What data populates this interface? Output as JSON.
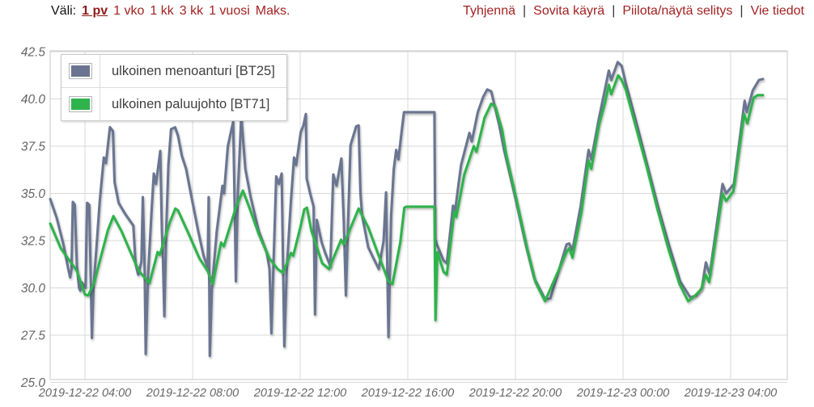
{
  "toolbar": {
    "range_label": "Väli:",
    "separator": "|",
    "range_options": [
      {
        "label": "1 pv",
        "active": true
      },
      {
        "label": "1 vko",
        "active": false
      },
      {
        "label": "1 kk",
        "active": false
      },
      {
        "label": "3 kk",
        "active": false
      },
      {
        "label": "1 vuosi",
        "active": false
      },
      {
        "label": "Maks.",
        "active": false
      }
    ],
    "actions": [
      {
        "label": "Tyhjennä"
      },
      {
        "label": "Sovita käyrä"
      },
      {
        "label": "Piilota/näytä selitys"
      },
      {
        "label": "Vie tiedot"
      }
    ]
  },
  "chart_data": {
    "type": "line",
    "title": "",
    "xlabel": "",
    "ylabel": "",
    "grid": true,
    "legend_position": "top-left",
    "colors": {
      "grid": "#d9d9d9",
      "plot_border": "#c8c8c8",
      "axis_text": "#666666"
    },
    "y_axis": {
      "ticks": [
        25.0,
        27.5,
        30.0,
        32.5,
        35.0,
        37.5,
        40.0,
        42.5
      ],
      "range": [
        25.0,
        42.5
      ]
    },
    "x_axis": {
      "tick_hours": [
        0,
        4,
        8,
        12,
        16,
        20,
        24
      ],
      "tick_labels": [
        "2019-12-22 04:00",
        "2019-12-22 08:00",
        "2019-12-22 12:00",
        "2019-12-22 16:00",
        "2019-12-22 20:00",
        "2019-12-23 00:00",
        "2019-12-23 04:00"
      ],
      "range_hours": [
        -1.3,
        26.1
      ]
    },
    "series": [
      {
        "id": "bt25",
        "name": "ulkoinen menoanturi [BT25]",
        "color": "#6a7490",
        "points": [
          [
            -1.29,
            34.7
          ],
          [
            -1.05,
            33.7
          ],
          [
            -0.8,
            32.3
          ],
          [
            -0.62,
            31.0
          ],
          [
            -0.55,
            30.55
          ],
          [
            -0.5,
            31.0
          ],
          [
            -0.45,
            34.55
          ],
          [
            -0.38,
            34.4
          ],
          [
            -0.3,
            31.2
          ],
          [
            -0.22,
            30.0
          ],
          [
            -0.17,
            29.85
          ],
          [
            -0.12,
            30.3
          ],
          [
            0.02,
            30.0
          ],
          [
            0.08,
            34.5
          ],
          [
            0.16,
            34.4
          ],
          [
            0.22,
            30.2
          ],
          [
            0.26,
            27.35
          ],
          [
            0.32,
            30.1
          ],
          [
            0.42,
            32.0
          ],
          [
            0.55,
            34.6
          ],
          [
            0.7,
            36.9
          ],
          [
            0.78,
            36.6
          ],
          [
            0.93,
            38.5
          ],
          [
            1.04,
            38.3
          ],
          [
            1.1,
            35.6
          ],
          [
            1.25,
            34.5
          ],
          [
            1.5,
            33.9
          ],
          [
            1.8,
            33.3
          ],
          [
            1.88,
            31.3
          ],
          [
            1.98,
            30.7
          ],
          [
            2.1,
            31.4
          ],
          [
            2.15,
            34.8
          ],
          [
            2.22,
            31.0
          ],
          [
            2.26,
            26.5
          ],
          [
            2.34,
            30.5
          ],
          [
            2.48,
            34.2
          ],
          [
            2.56,
            36.05
          ],
          [
            2.64,
            35.5
          ],
          [
            2.8,
            37.25
          ],
          [
            2.86,
            33.0
          ],
          [
            2.9,
            31.5
          ],
          [
            2.95,
            28.5
          ],
          [
            3.02,
            33.0
          ],
          [
            3.1,
            36.5
          ],
          [
            3.2,
            38.4
          ],
          [
            3.35,
            38.5
          ],
          [
            3.46,
            38.05
          ],
          [
            3.6,
            37.0
          ],
          [
            3.76,
            36.3
          ],
          [
            3.96,
            34.8
          ],
          [
            4.21,
            33.0
          ],
          [
            4.41,
            31.7
          ],
          [
            4.56,
            31.1
          ],
          [
            4.6,
            34.8
          ],
          [
            4.64,
            26.4
          ],
          [
            4.72,
            30.0
          ],
          [
            4.9,
            33.0
          ],
          [
            5.11,
            35.4
          ],
          [
            5.17,
            35.0
          ],
          [
            5.31,
            37.5
          ],
          [
            5.51,
            38.8
          ],
          [
            5.57,
            34.0
          ],
          [
            5.61,
            30.35
          ],
          [
            5.68,
            35.0
          ],
          [
            5.81,
            39.1
          ],
          [
            5.96,
            36.3
          ],
          [
            6.16,
            34.8
          ],
          [
            6.46,
            33.0
          ],
          [
            6.76,
            31.85
          ],
          [
            6.86,
            31.0
          ],
          [
            6.93,
            27.6
          ],
          [
            7.0,
            31.0
          ],
          [
            7.11,
            35.9
          ],
          [
            7.21,
            35.5
          ],
          [
            7.31,
            36.05
          ],
          [
            7.36,
            31.6
          ],
          [
            7.41,
            26.9
          ],
          [
            7.5,
            31.0
          ],
          [
            7.65,
            34.5
          ],
          [
            7.77,
            36.9
          ],
          [
            7.85,
            36.5
          ],
          [
            8.02,
            38.25
          ],
          [
            8.12,
            38.6
          ],
          [
            8.21,
            39.2
          ],
          [
            8.24,
            35.8
          ],
          [
            8.37,
            35.0
          ],
          [
            8.5,
            34.3
          ],
          [
            8.55,
            28.6
          ],
          [
            8.62,
            33.6
          ],
          [
            8.8,
            32.4
          ],
          [
            8.93,
            31.85
          ],
          [
            9.08,
            31.3
          ],
          [
            9.12,
            31.1
          ],
          [
            9.23,
            36.0
          ],
          [
            9.35,
            35.4
          ],
          [
            9.53,
            36.85
          ],
          [
            9.62,
            33.5
          ],
          [
            9.7,
            29.6
          ],
          [
            9.78,
            33.5
          ],
          [
            9.87,
            37.55
          ],
          [
            10.08,
            38.55
          ],
          [
            10.17,
            38.6
          ],
          [
            10.24,
            35.0
          ],
          [
            10.3,
            33.85
          ],
          [
            10.53,
            32.15
          ],
          [
            10.68,
            31.7
          ],
          [
            10.92,
            31.0
          ],
          [
            11.1,
            32.5
          ],
          [
            11.19,
            35.05
          ],
          [
            11.28,
            27.4
          ],
          [
            11.38,
            33.85
          ],
          [
            11.48,
            36.3
          ],
          [
            11.57,
            37.3
          ],
          [
            11.65,
            36.8
          ],
          [
            11.78,
            38.4
          ],
          [
            11.86,
            39.3
          ],
          [
            12.1,
            39.3
          ],
          [
            12.99,
            39.3
          ],
          [
            13.02,
            32.6
          ],
          [
            13.08,
            32.3
          ],
          [
            13.33,
            31.45
          ],
          [
            13.45,
            31.3
          ],
          [
            13.68,
            34.35
          ],
          [
            13.76,
            34.1
          ],
          [
            13.98,
            36.5
          ],
          [
            14.29,
            38.2
          ],
          [
            14.38,
            37.75
          ],
          [
            14.6,
            39.3
          ],
          [
            14.8,
            40.1
          ],
          [
            14.95,
            40.5
          ],
          [
            15.1,
            40.4
          ],
          [
            15.4,
            38.6
          ],
          [
            15.58,
            37.3
          ],
          [
            16.0,
            34.75
          ],
          [
            16.4,
            32.2
          ],
          [
            16.7,
            30.5
          ],
          [
            17.1,
            29.4
          ],
          [
            17.3,
            29.45
          ],
          [
            17.9,
            32.3
          ],
          [
            18.0,
            32.35
          ],
          [
            18.12,
            32.0
          ],
          [
            18.42,
            34.3
          ],
          [
            18.72,
            37.3
          ],
          [
            18.82,
            36.8
          ],
          [
            19.1,
            38.95
          ],
          [
            19.32,
            40.45
          ],
          [
            19.47,
            41.5
          ],
          [
            19.56,
            41.0
          ],
          [
            19.8,
            41.95
          ],
          [
            19.95,
            41.75
          ],
          [
            20.1,
            40.85
          ],
          [
            20.52,
            38.6
          ],
          [
            20.9,
            36.5
          ],
          [
            21.3,
            34.3
          ],
          [
            21.72,
            32.2
          ],
          [
            22.12,
            30.35
          ],
          [
            22.5,
            29.5
          ],
          [
            22.72,
            29.6
          ],
          [
            22.93,
            30.0
          ],
          [
            23.08,
            31.35
          ],
          [
            23.22,
            30.7
          ],
          [
            23.7,
            35.5
          ],
          [
            23.83,
            35.0
          ],
          [
            24.12,
            35.5
          ],
          [
            24.52,
            39.9
          ],
          [
            24.6,
            39.3
          ],
          [
            24.82,
            40.45
          ],
          [
            25.05,
            41.0
          ],
          [
            25.2,
            41.05
          ]
        ]
      },
      {
        "id": "bt71",
        "name": "ulkoinen paluujohto [BT71]",
        "color": "#2fb34c",
        "points": [
          [
            -1.29,
            33.4
          ],
          [
            -0.9,
            32.1
          ],
          [
            -0.6,
            31.5
          ],
          [
            -0.3,
            30.9
          ],
          [
            0.0,
            29.65
          ],
          [
            0.12,
            29.6
          ],
          [
            0.35,
            30.3
          ],
          [
            0.62,
            31.8
          ],
          [
            0.85,
            33.05
          ],
          [
            1.06,
            33.8
          ],
          [
            1.36,
            33.0
          ],
          [
            1.66,
            32.0
          ],
          [
            2.0,
            30.9
          ],
          [
            2.4,
            30.25
          ],
          [
            2.7,
            31.9
          ],
          [
            2.78,
            31.75
          ],
          [
            3.16,
            33.5
          ],
          [
            3.36,
            34.2
          ],
          [
            3.46,
            34.1
          ],
          [
            3.86,
            32.85
          ],
          [
            4.26,
            31.55
          ],
          [
            4.56,
            30.9
          ],
          [
            4.75,
            30.2
          ],
          [
            5.06,
            32.4
          ],
          [
            5.16,
            32.2
          ],
          [
            5.61,
            34.25
          ],
          [
            5.87,
            35.15
          ],
          [
            6.11,
            34.25
          ],
          [
            6.46,
            32.85
          ],
          [
            6.86,
            31.55
          ],
          [
            7.16,
            31.0
          ],
          [
            7.36,
            30.8
          ],
          [
            7.66,
            31.85
          ],
          [
            7.74,
            31.7
          ],
          [
            8.02,
            33.3
          ],
          [
            8.15,
            34.15
          ],
          [
            8.25,
            34.25
          ],
          [
            8.42,
            33.0
          ],
          [
            8.82,
            31.3
          ],
          [
            9.07,
            31.0
          ],
          [
            9.52,
            32.55
          ],
          [
            9.62,
            32.3
          ],
          [
            10.17,
            34.2
          ],
          [
            10.53,
            33.2
          ],
          [
            10.92,
            31.7
          ],
          [
            11.28,
            30.35
          ],
          [
            11.43,
            30.2
          ],
          [
            11.72,
            32.4
          ],
          [
            11.87,
            34.25
          ],
          [
            11.95,
            34.3
          ],
          [
            12.99,
            34.3
          ],
          [
            13.03,
            28.3
          ],
          [
            13.1,
            31.9
          ],
          [
            13.33,
            30.85
          ],
          [
            13.45,
            30.7
          ],
          [
            13.73,
            34.05
          ],
          [
            13.8,
            33.75
          ],
          [
            14.1,
            36.0
          ],
          [
            14.45,
            37.5
          ],
          [
            14.55,
            37.2
          ],
          [
            14.85,
            39.0
          ],
          [
            15.1,
            39.75
          ],
          [
            15.25,
            39.6
          ],
          [
            15.5,
            38.4
          ],
          [
            15.65,
            37.1
          ],
          [
            16.05,
            34.6
          ],
          [
            16.45,
            32.0
          ],
          [
            16.75,
            30.3
          ],
          [
            17.1,
            29.3
          ],
          [
            17.9,
            31.9
          ],
          [
            18.0,
            32.1
          ],
          [
            18.12,
            31.6
          ],
          [
            18.45,
            34.0
          ],
          [
            18.72,
            36.75
          ],
          [
            18.82,
            36.3
          ],
          [
            19.1,
            38.6
          ],
          [
            19.32,
            39.75
          ],
          [
            19.47,
            40.75
          ],
          [
            19.56,
            40.25
          ],
          [
            19.82,
            41.25
          ],
          [
            19.95,
            41.0
          ],
          [
            20.1,
            40.5
          ],
          [
            20.5,
            38.4
          ],
          [
            20.9,
            36.3
          ],
          [
            21.29,
            34.1
          ],
          [
            21.7,
            32.0
          ],
          [
            22.1,
            30.2
          ],
          [
            22.42,
            29.3
          ],
          [
            22.6,
            29.5
          ],
          [
            22.9,
            29.9
          ],
          [
            23.07,
            30.7
          ],
          [
            23.2,
            30.3
          ],
          [
            23.7,
            35.0
          ],
          [
            23.83,
            34.6
          ],
          [
            24.1,
            35.1
          ],
          [
            24.5,
            39.2
          ],
          [
            24.62,
            38.7
          ],
          [
            24.85,
            40.05
          ],
          [
            25.0,
            40.2
          ],
          [
            25.2,
            40.2
          ]
        ]
      }
    ]
  }
}
